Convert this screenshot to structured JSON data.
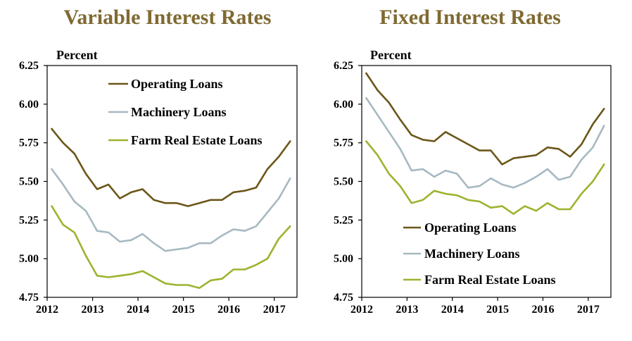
{
  "chart_data": [
    {
      "type": "line",
      "title": "Variable Interest Rates",
      "ylabel": "Percent",
      "xlabel": "",
      "ylim": [
        4.75,
        6.25
      ],
      "yticks": [
        "6.25",
        "6.00",
        "5.75",
        "5.50",
        "5.25",
        "5.00",
        "4.75"
      ],
      "xticks": [
        "2012",
        "2013",
        "2014",
        "2015",
        "2016",
        "2017"
      ],
      "xlim": [
        2012.0,
        2017.5
      ],
      "x": [
        2012.1,
        2012.35,
        2012.6,
        2012.85,
        2013.1,
        2013.35,
        2013.6,
        2013.85,
        2014.1,
        2014.35,
        2014.6,
        2014.85,
        2015.1,
        2015.35,
        2015.6,
        2015.85,
        2016.1,
        2016.35,
        2016.6,
        2016.85,
        2017.1,
        2017.35
      ],
      "legend_position": "top",
      "grid": false,
      "series": [
        {
          "name": "Operating Loans",
          "color": "#6b5618",
          "values": [
            5.84,
            5.75,
            5.68,
            5.55,
            5.45,
            5.48,
            5.39,
            5.43,
            5.45,
            5.38,
            5.36,
            5.36,
            5.34,
            5.36,
            5.38,
            5.38,
            5.43,
            5.44,
            5.46,
            5.58,
            5.66,
            5.76
          ]
        },
        {
          "name": "Machinery Loans",
          "color": "#a7b9c1",
          "values": [
            5.58,
            5.48,
            5.37,
            5.31,
            5.18,
            5.17,
            5.11,
            5.12,
            5.16,
            5.1,
            5.05,
            5.06,
            5.07,
            5.1,
            5.1,
            5.15,
            5.19,
            5.18,
            5.21,
            5.3,
            5.39,
            5.52
          ]
        },
        {
          "name": "Farm Real Estate Loans",
          "color": "#9ab42f",
          "values": [
            5.34,
            5.22,
            5.17,
            5.02,
            4.89,
            4.88,
            4.89,
            4.9,
            4.92,
            4.88,
            4.84,
            4.83,
            4.83,
            4.81,
            4.86,
            4.87,
            4.93,
            4.93,
            4.96,
            5.0,
            5.13,
            5.21
          ]
        }
      ]
    },
    {
      "type": "line",
      "title": "Fixed Interest Rates",
      "ylabel": "Percent",
      "xlabel": "",
      "ylim": [
        4.75,
        6.25
      ],
      "yticks": [
        "6.25",
        "6.00",
        "5.75",
        "5.50",
        "5.25",
        "5.00",
        "4.75"
      ],
      "xticks": [
        "2012",
        "2013",
        "2014",
        "2015",
        "2016",
        "2017"
      ],
      "xlim": [
        2012.0,
        2017.5
      ],
      "x": [
        2012.1,
        2012.35,
        2012.6,
        2012.85,
        2013.1,
        2013.35,
        2013.6,
        2013.85,
        2014.1,
        2014.35,
        2014.6,
        2014.85,
        2015.1,
        2015.35,
        2015.6,
        2015.85,
        2016.1,
        2016.35,
        2016.6,
        2016.85,
        2017.1,
        2017.35
      ],
      "legend_position": "bottom",
      "grid": false,
      "series": [
        {
          "name": "Operating Loans",
          "color": "#6b5618",
          "values": [
            6.2,
            6.09,
            6.01,
            5.9,
            5.8,
            5.77,
            5.76,
            5.82,
            5.78,
            5.74,
            5.7,
            5.7,
            5.61,
            5.65,
            5.66,
            5.67,
            5.72,
            5.71,
            5.66,
            5.74,
            5.87,
            5.97
          ]
        },
        {
          "name": "Machinery Loans",
          "color": "#a7b9c1",
          "values": [
            6.04,
            5.93,
            5.82,
            5.71,
            5.57,
            5.58,
            5.53,
            5.57,
            5.55,
            5.46,
            5.47,
            5.52,
            5.48,
            5.46,
            5.49,
            5.53,
            5.58,
            5.51,
            5.53,
            5.64,
            5.72,
            5.86
          ]
        },
        {
          "name": "Farm Real Estate Loans",
          "color": "#9ab42f",
          "values": [
            5.76,
            5.67,
            5.55,
            5.47,
            5.36,
            5.38,
            5.44,
            5.42,
            5.41,
            5.38,
            5.37,
            5.33,
            5.34,
            5.29,
            5.34,
            5.31,
            5.36,
            5.32,
            5.32,
            5.42,
            5.5,
            5.61
          ]
        }
      ]
    }
  ]
}
